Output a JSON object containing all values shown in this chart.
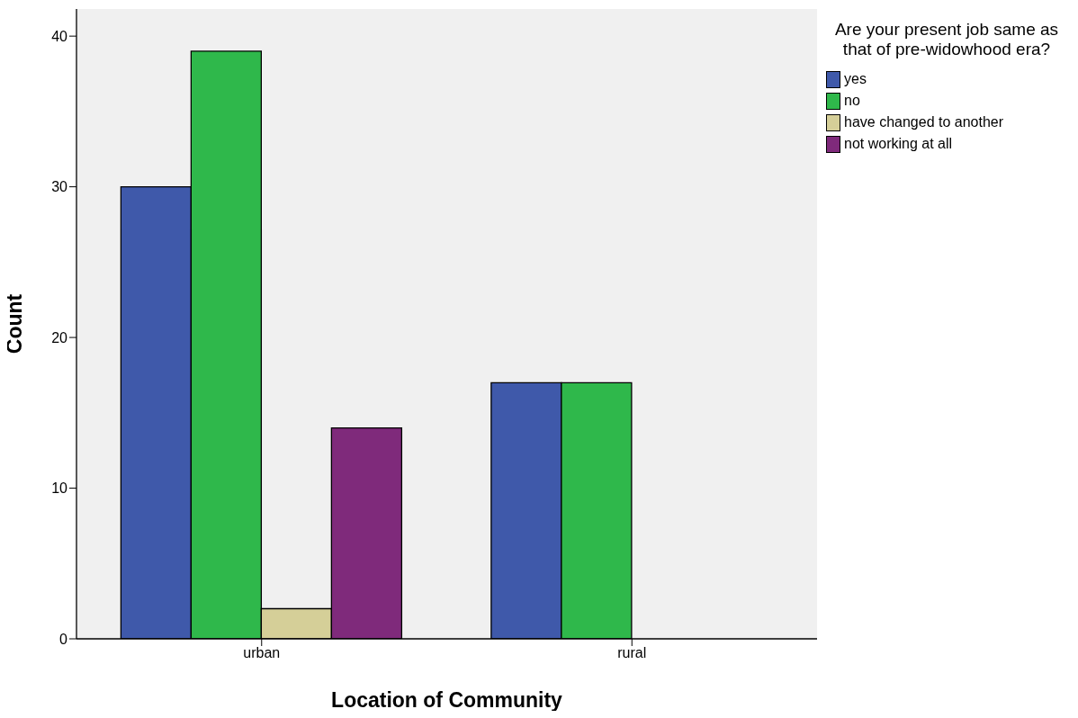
{
  "chart_data": {
    "type": "bar",
    "xlabel": "Location of Community",
    "ylabel": "Count",
    "legend_title": "Are your present job same as that of pre-widowhood era?",
    "categories": [
      "urban",
      "rural"
    ],
    "series": [
      {
        "name": "yes",
        "color": "#3f59aa",
        "values": [
          30,
          17
        ]
      },
      {
        "name": "no",
        "color": "#2fb84b",
        "values": [
          39,
          17
        ]
      },
      {
        "name": "have changed to another",
        "color": "#d5cf98",
        "values": [
          2,
          null
        ]
      },
      {
        "name": "not working at all",
        "color": "#7f2a7b",
        "values": [
          14,
          null
        ]
      }
    ],
    "ylim": [
      0,
      41.8
    ],
    "yticks": [
      0,
      10,
      20,
      30,
      40
    ],
    "legend": "top right"
  }
}
